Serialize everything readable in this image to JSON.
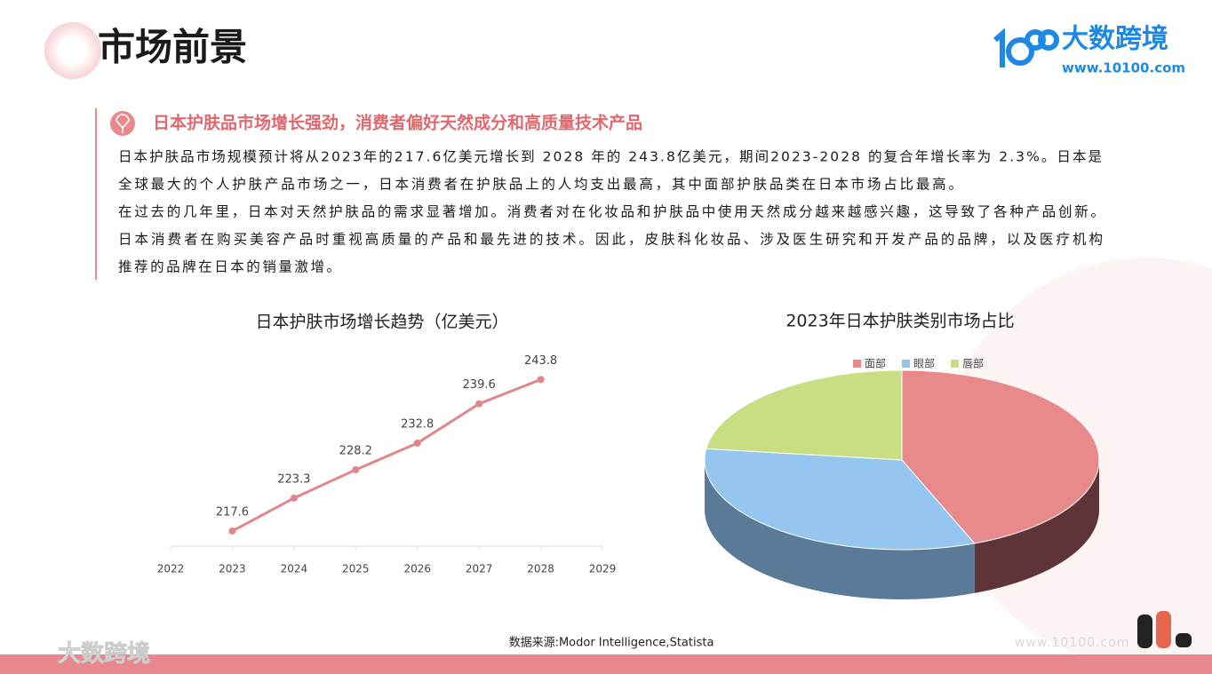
{
  "header": {
    "title": "市场前景",
    "logo_name": "大数跨境",
    "logo_url": "www.10100.com"
  },
  "section": {
    "heading": "日本护肤品市场增长强劲，消费者偏好天然成分和高质量技术产品",
    "lines": [
      "日本护肤品市场规模预计将从2023年的217.6亿美元增长到 2028 年的 243.8亿美元，期间2023-2028 的复合年增长率为 2.3%。日本是",
      "全球最大的个人护肤产品市场之一，日本消费者在护肤品上的人均支出最高，其中面部护肤品类在日本市场占比最高。",
      "在过去的几年里，日本对天然护肤品的需求显著增加。消费者对在化妆品和护肤品中使用天然成分越来越感兴趣，这导致了各种产品创新。",
      "日本消费者在购买美容产品时重视高质量的产品和最先进的技术。因此，皮肤科化妆品、涉及医生研究和开发产品的品牌，以及医疗机构",
      "推荐的品牌在日本的销量激增。"
    ]
  },
  "chart_data": [
    {
      "type": "line",
      "title": "日本护肤市场增长趋势（亿美元）",
      "x": [
        2023,
        2024,
        2025,
        2026,
        2027,
        2028
      ],
      "values": [
        217.6,
        223.3,
        228.2,
        232.8,
        239.6,
        243.8
      ],
      "color": "#e0868c",
      "xlim": [
        2022,
        2029
      ],
      "xticks": [
        2022,
        2023,
        2024,
        2025,
        2026,
        2027,
        2028,
        2029
      ],
      "ylim": [
        215,
        248
      ]
    },
    {
      "type": "pie",
      "title": "2023年日本护肤类别市场占比",
      "categories": [
        "面部",
        "眼部",
        "唇部"
      ],
      "values": [
        44,
        33,
        23
      ],
      "colors": [
        "#e8898c",
        "#94c6f0",
        "#c9dd83"
      ],
      "side_colors": [
        "#5f3438",
        "#5a7a98",
        "#7f8c55"
      ]
    }
  ],
  "source": "数据来源:Modor Intelligence,Statista",
  "footer": {
    "watermark": "大数跨境",
    "url": "www.10100.com"
  }
}
